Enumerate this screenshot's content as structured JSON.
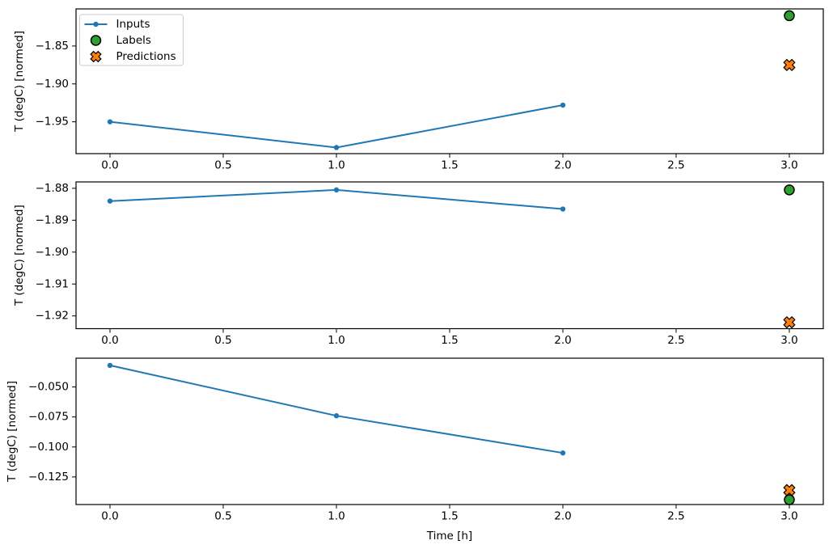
{
  "figure": {
    "xlabel": "Time [h]",
    "ylabel": "T (degC) [normed]",
    "legend": [
      {
        "label": "Inputs",
        "marker": "line-dot",
        "color": "#1f77b4"
      },
      {
        "label": "Labels",
        "marker": "circle",
        "color": "#2ca02c"
      },
      {
        "label": "Predictions",
        "marker": "X",
        "color": "#ff7f0e"
      }
    ],
    "colors": {
      "inputs_line": "#1f77b4",
      "labels_marker": "#2ca02c",
      "predictions_marker": "#ff7f0e",
      "marker_edge": "#000000",
      "legend_border": "#cccccc",
      "background": "#ffffff"
    }
  },
  "chart_data": [
    {
      "type": "line",
      "title": "",
      "xlabel": "",
      "ylabel": "T (degC) [normed]",
      "legend_visible": true,
      "legend_position": "upper left",
      "grid": false,
      "xlim": [
        -0.15,
        3.15
      ],
      "ylim": [
        -1.992,
        -1.801
      ],
      "xticks": [
        0.0,
        0.5,
        1.0,
        1.5,
        2.0,
        2.5,
        3.0
      ],
      "xtick_labels": [
        "0.0",
        "0.5",
        "1.0",
        "1.5",
        "2.0",
        "2.5",
        "3.0"
      ],
      "yticks": [
        -1.85,
        -1.9,
        -1.95
      ],
      "ytick_labels": [
        "−1.85",
        "−1.90",
        "−1.95"
      ],
      "series": [
        {
          "name": "Inputs",
          "type": "line",
          "marker": "dot",
          "color": "#1f77b4",
          "x": [
            0,
            1,
            2
          ],
          "y": [
            -1.95,
            -1.984,
            -1.928
          ]
        },
        {
          "name": "Labels",
          "type": "scatter",
          "marker": "circle",
          "color": "#2ca02c",
          "x": [
            3
          ],
          "y": [
            -1.81
          ]
        },
        {
          "name": "Predictions",
          "type": "scatter",
          "marker": "X",
          "color": "#ff7f0e",
          "x": [
            3
          ],
          "y": [
            -1.875
          ]
        }
      ]
    },
    {
      "type": "line",
      "title": "",
      "xlabel": "",
      "ylabel": "T (degC) [normed]",
      "legend_visible": false,
      "grid": false,
      "xlim": [
        -0.15,
        3.15
      ],
      "ylim": [
        -1.924,
        -1.878
      ],
      "xticks": [
        0.0,
        0.5,
        1.0,
        1.5,
        2.0,
        2.5,
        3.0
      ],
      "xtick_labels": [
        "0.0",
        "0.5",
        "1.0",
        "1.5",
        "2.0",
        "2.5",
        "3.0"
      ],
      "yticks": [
        -1.88,
        -1.89,
        -1.9,
        -1.91,
        -1.92
      ],
      "ytick_labels": [
        "−1.88",
        "−1.89",
        "−1.90",
        "−1.91",
        "−1.92"
      ],
      "series": [
        {
          "name": "Inputs",
          "type": "line",
          "marker": "dot",
          "color": "#1f77b4",
          "x": [
            0,
            1,
            2
          ],
          "y": [
            -1.884,
            -1.8805,
            -1.8865
          ]
        },
        {
          "name": "Labels",
          "type": "scatter",
          "marker": "circle",
          "color": "#2ca02c",
          "x": [
            3
          ],
          "y": [
            -1.8805
          ]
        },
        {
          "name": "Predictions",
          "type": "scatter",
          "marker": "X",
          "color": "#ff7f0e",
          "x": [
            3
          ],
          "y": [
            -1.922
          ]
        }
      ]
    },
    {
      "type": "line",
      "title": "",
      "xlabel": "Time [h]",
      "ylabel": "T (degC) [normed]",
      "legend_visible": false,
      "grid": false,
      "xlim": [
        -0.15,
        3.15
      ],
      "ylim": [
        -0.148,
        -0.026
      ],
      "xticks": [
        0.0,
        0.5,
        1.0,
        1.5,
        2.0,
        2.5,
        3.0
      ],
      "xtick_labels": [
        "0.0",
        "0.5",
        "1.0",
        "1.5",
        "2.0",
        "2.5",
        "3.0"
      ],
      "yticks": [
        -0.05,
        -0.075,
        -0.1,
        -0.125
      ],
      "ytick_labels": [
        "−0.050",
        "−0.075",
        "−0.100",
        "−0.125"
      ],
      "series": [
        {
          "name": "Inputs",
          "type": "line",
          "marker": "dot",
          "color": "#1f77b4",
          "x": [
            0,
            1,
            2
          ],
          "y": [
            -0.032,
            -0.074,
            -0.105
          ]
        },
        {
          "name": "Labels",
          "type": "scatter",
          "marker": "circle",
          "color": "#2ca02c",
          "x": [
            3
          ],
          "y": [
            -0.144
          ]
        },
        {
          "name": "Predictions",
          "type": "scatter",
          "marker": "X",
          "color": "#ff7f0e",
          "x": [
            3
          ],
          "y": [
            -0.136
          ]
        }
      ]
    }
  ]
}
